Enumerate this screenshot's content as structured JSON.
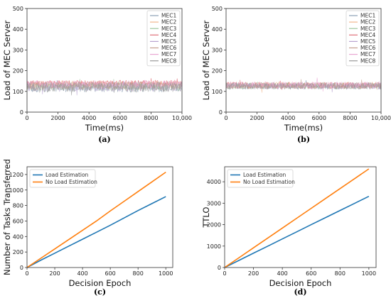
{
  "chart_data": [
    {
      "id": "a",
      "type": "line",
      "caption": "(a)",
      "xlabel": "Time(ms)",
      "ylabel": "Load of MEC Server",
      "xlim": [
        0,
        10000
      ],
      "ylim": [
        0,
        500
      ],
      "xticks": [
        0,
        2000,
        4000,
        6000,
        8000,
        10000
      ],
      "xtick_labels": [
        "0",
        "2000",
        "4000",
        "6000",
        "8000",
        "10,000"
      ],
      "yticks": [
        0,
        100,
        200,
        300,
        400,
        500
      ],
      "legend": "top-right",
      "grid": false,
      "series": [
        {
          "name": "MEC1",
          "color": "#8c9fb4",
          "mean": 118,
          "spread": 22
        },
        {
          "name": "MEC2",
          "color": "#f2b78e",
          "mean": 132,
          "spread": 20
        },
        {
          "name": "MEC3",
          "color": "#9cc79c",
          "mean": 125,
          "spread": 22
        },
        {
          "name": "MEC4",
          "color": "#e06f78",
          "mean": 140,
          "spread": 14
        },
        {
          "name": "MEC5",
          "color": "#b9a3cf",
          "mean": 122,
          "spread": 22
        },
        {
          "name": "MEC6",
          "color": "#c49c8e",
          "mean": 128,
          "spread": 20
        },
        {
          "name": "MEC7",
          "color": "#e9a6d3",
          "mean": 135,
          "spread": 18
        },
        {
          "name": "MEC8",
          "color": "#9a9a9a",
          "mean": 120,
          "spread": 24
        }
      ]
    },
    {
      "id": "b",
      "type": "line",
      "caption": "(b)",
      "xlabel": "Time(ms)",
      "ylabel": "Load of MEC Server",
      "xlim": [
        0,
        10000
      ],
      "ylim": [
        0,
        500
      ],
      "xticks": [
        0,
        2000,
        4000,
        6000,
        8000,
        10000
      ],
      "xtick_labels": [
        "0",
        "2000",
        "4000",
        "6000",
        "8000",
        "10,000"
      ],
      "yticks": [
        0,
        100,
        200,
        300,
        400,
        500
      ],
      "legend": "top-right",
      "grid": false,
      "series": [
        {
          "name": "MEC1",
          "color": "#8c9fb4",
          "mean": 126,
          "spread": 16
        },
        {
          "name": "MEC2",
          "color": "#f2b78e",
          "mean": 130,
          "spread": 16
        },
        {
          "name": "MEC3",
          "color": "#9cc79c",
          "mean": 127,
          "spread": 16
        },
        {
          "name": "MEC4",
          "color": "#e06f78",
          "mean": 129,
          "spread": 16
        },
        {
          "name": "MEC5",
          "color": "#b9a3cf",
          "mean": 126,
          "spread": 16
        },
        {
          "name": "MEC6",
          "color": "#c49c8e",
          "mean": 128,
          "spread": 16
        },
        {
          "name": "MEC7",
          "color": "#e9a6d3",
          "mean": 131,
          "spread": 16
        },
        {
          "name": "MEC8",
          "color": "#9a9a9a",
          "mean": 125,
          "spread": 16
        }
      ]
    },
    {
      "id": "c",
      "type": "line",
      "caption": "(c)",
      "xlabel": "Decision Epoch",
      "ylabel": "Number of Tasks Transferred",
      "xlim": [
        0,
        1050
      ],
      "ylim": [
        0,
        1300
      ],
      "xticks": [
        0,
        200,
        400,
        600,
        800,
        1000
      ],
      "yticks": [
        0,
        200,
        400,
        600,
        800,
        1000,
        1200
      ],
      "legend": "top-left",
      "grid": false,
      "x": [
        0,
        100,
        200,
        300,
        400,
        500,
        600,
        700,
        800,
        900,
        1000
      ],
      "series": [
        {
          "name": "Load Estimation",
          "color": "#1f77b4",
          "values": [
            0,
            95,
            185,
            275,
            365,
            455,
            545,
            640,
            735,
            825,
            915
          ]
        },
        {
          "name": "No Load Estimation",
          "color": "#ff7f0e",
          "values": [
            0,
            120,
            240,
            360,
            480,
            600,
            730,
            855,
            980,
            1105,
            1230
          ]
        }
      ]
    },
    {
      "id": "d",
      "type": "line",
      "caption": "(d)",
      "xlabel": "Decision Epoch",
      "ylabel": "TTLO",
      "xlim": [
        0,
        1050
      ],
      "ylim": [
        0,
        4700
      ],
      "xticks": [
        0,
        200,
        400,
        600,
        800,
        1000
      ],
      "yticks": [
        0,
        1000,
        2000,
        3000,
        4000
      ],
      "legend": "top-left",
      "grid": false,
      "x": [
        0,
        100,
        200,
        300,
        400,
        500,
        600,
        700,
        800,
        900,
        1000
      ],
      "series": [
        {
          "name": "Load Estimation",
          "color": "#1f77b4",
          "values": [
            0,
            335,
            670,
            1000,
            1335,
            1665,
            2000,
            2330,
            2660,
            2990,
            3320
          ]
        },
        {
          "name": "No Load Estimation",
          "color": "#ff7f0e",
          "values": [
            0,
            460,
            920,
            1380,
            1840,
            2300,
            2760,
            3220,
            3680,
            4140,
            4600
          ]
        }
      ]
    }
  ]
}
